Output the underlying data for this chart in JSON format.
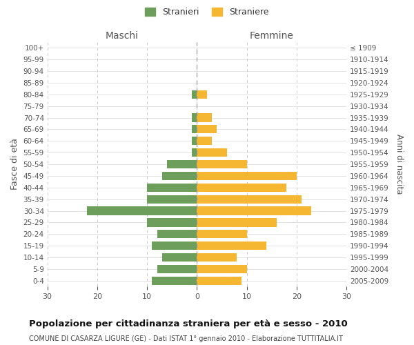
{
  "age_groups": [
    "100+",
    "95-99",
    "90-94",
    "85-89",
    "80-84",
    "75-79",
    "70-74",
    "65-69",
    "60-64",
    "55-59",
    "50-54",
    "45-49",
    "40-44",
    "35-39",
    "30-34",
    "25-29",
    "20-24",
    "15-19",
    "10-14",
    "5-9",
    "0-4"
  ],
  "birth_years": [
    "≤ 1909",
    "1910-1914",
    "1915-1919",
    "1920-1924",
    "1925-1929",
    "1930-1934",
    "1935-1939",
    "1940-1944",
    "1945-1949",
    "1950-1954",
    "1955-1959",
    "1960-1964",
    "1965-1969",
    "1970-1974",
    "1975-1979",
    "1980-1984",
    "1985-1989",
    "1990-1994",
    "1995-1999",
    "2000-2004",
    "2005-2009"
  ],
  "maschi": [
    0,
    0,
    0,
    0,
    1,
    0,
    1,
    1,
    1,
    1,
    6,
    7,
    10,
    10,
    22,
    10,
    8,
    9,
    7,
    8,
    9
  ],
  "femmine": [
    0,
    0,
    0,
    0,
    2,
    0,
    3,
    4,
    3,
    6,
    10,
    20,
    18,
    21,
    23,
    16,
    10,
    14,
    8,
    10,
    9
  ],
  "maschi_color": "#6d9e5b",
  "femmine_color": "#f5b731",
  "bg_color": "#ffffff",
  "grid_color": "#cccccc",
  "title": "Popolazione per cittadinanza straniera per età e sesso - 2010",
  "subtitle": "COMUNE DI CASARZA LIGURE (GE) - Dati ISTAT 1° gennaio 2010 - Elaborazione TUTTITALIA.IT",
  "left_header": "Maschi",
  "right_header": "Femmine",
  "left_axis_label": "Fasce di età",
  "right_axis_label": "Anni di nascita",
  "legend_stranieri": "Stranieri",
  "legend_straniere": "Straniere",
  "xlim": 30
}
